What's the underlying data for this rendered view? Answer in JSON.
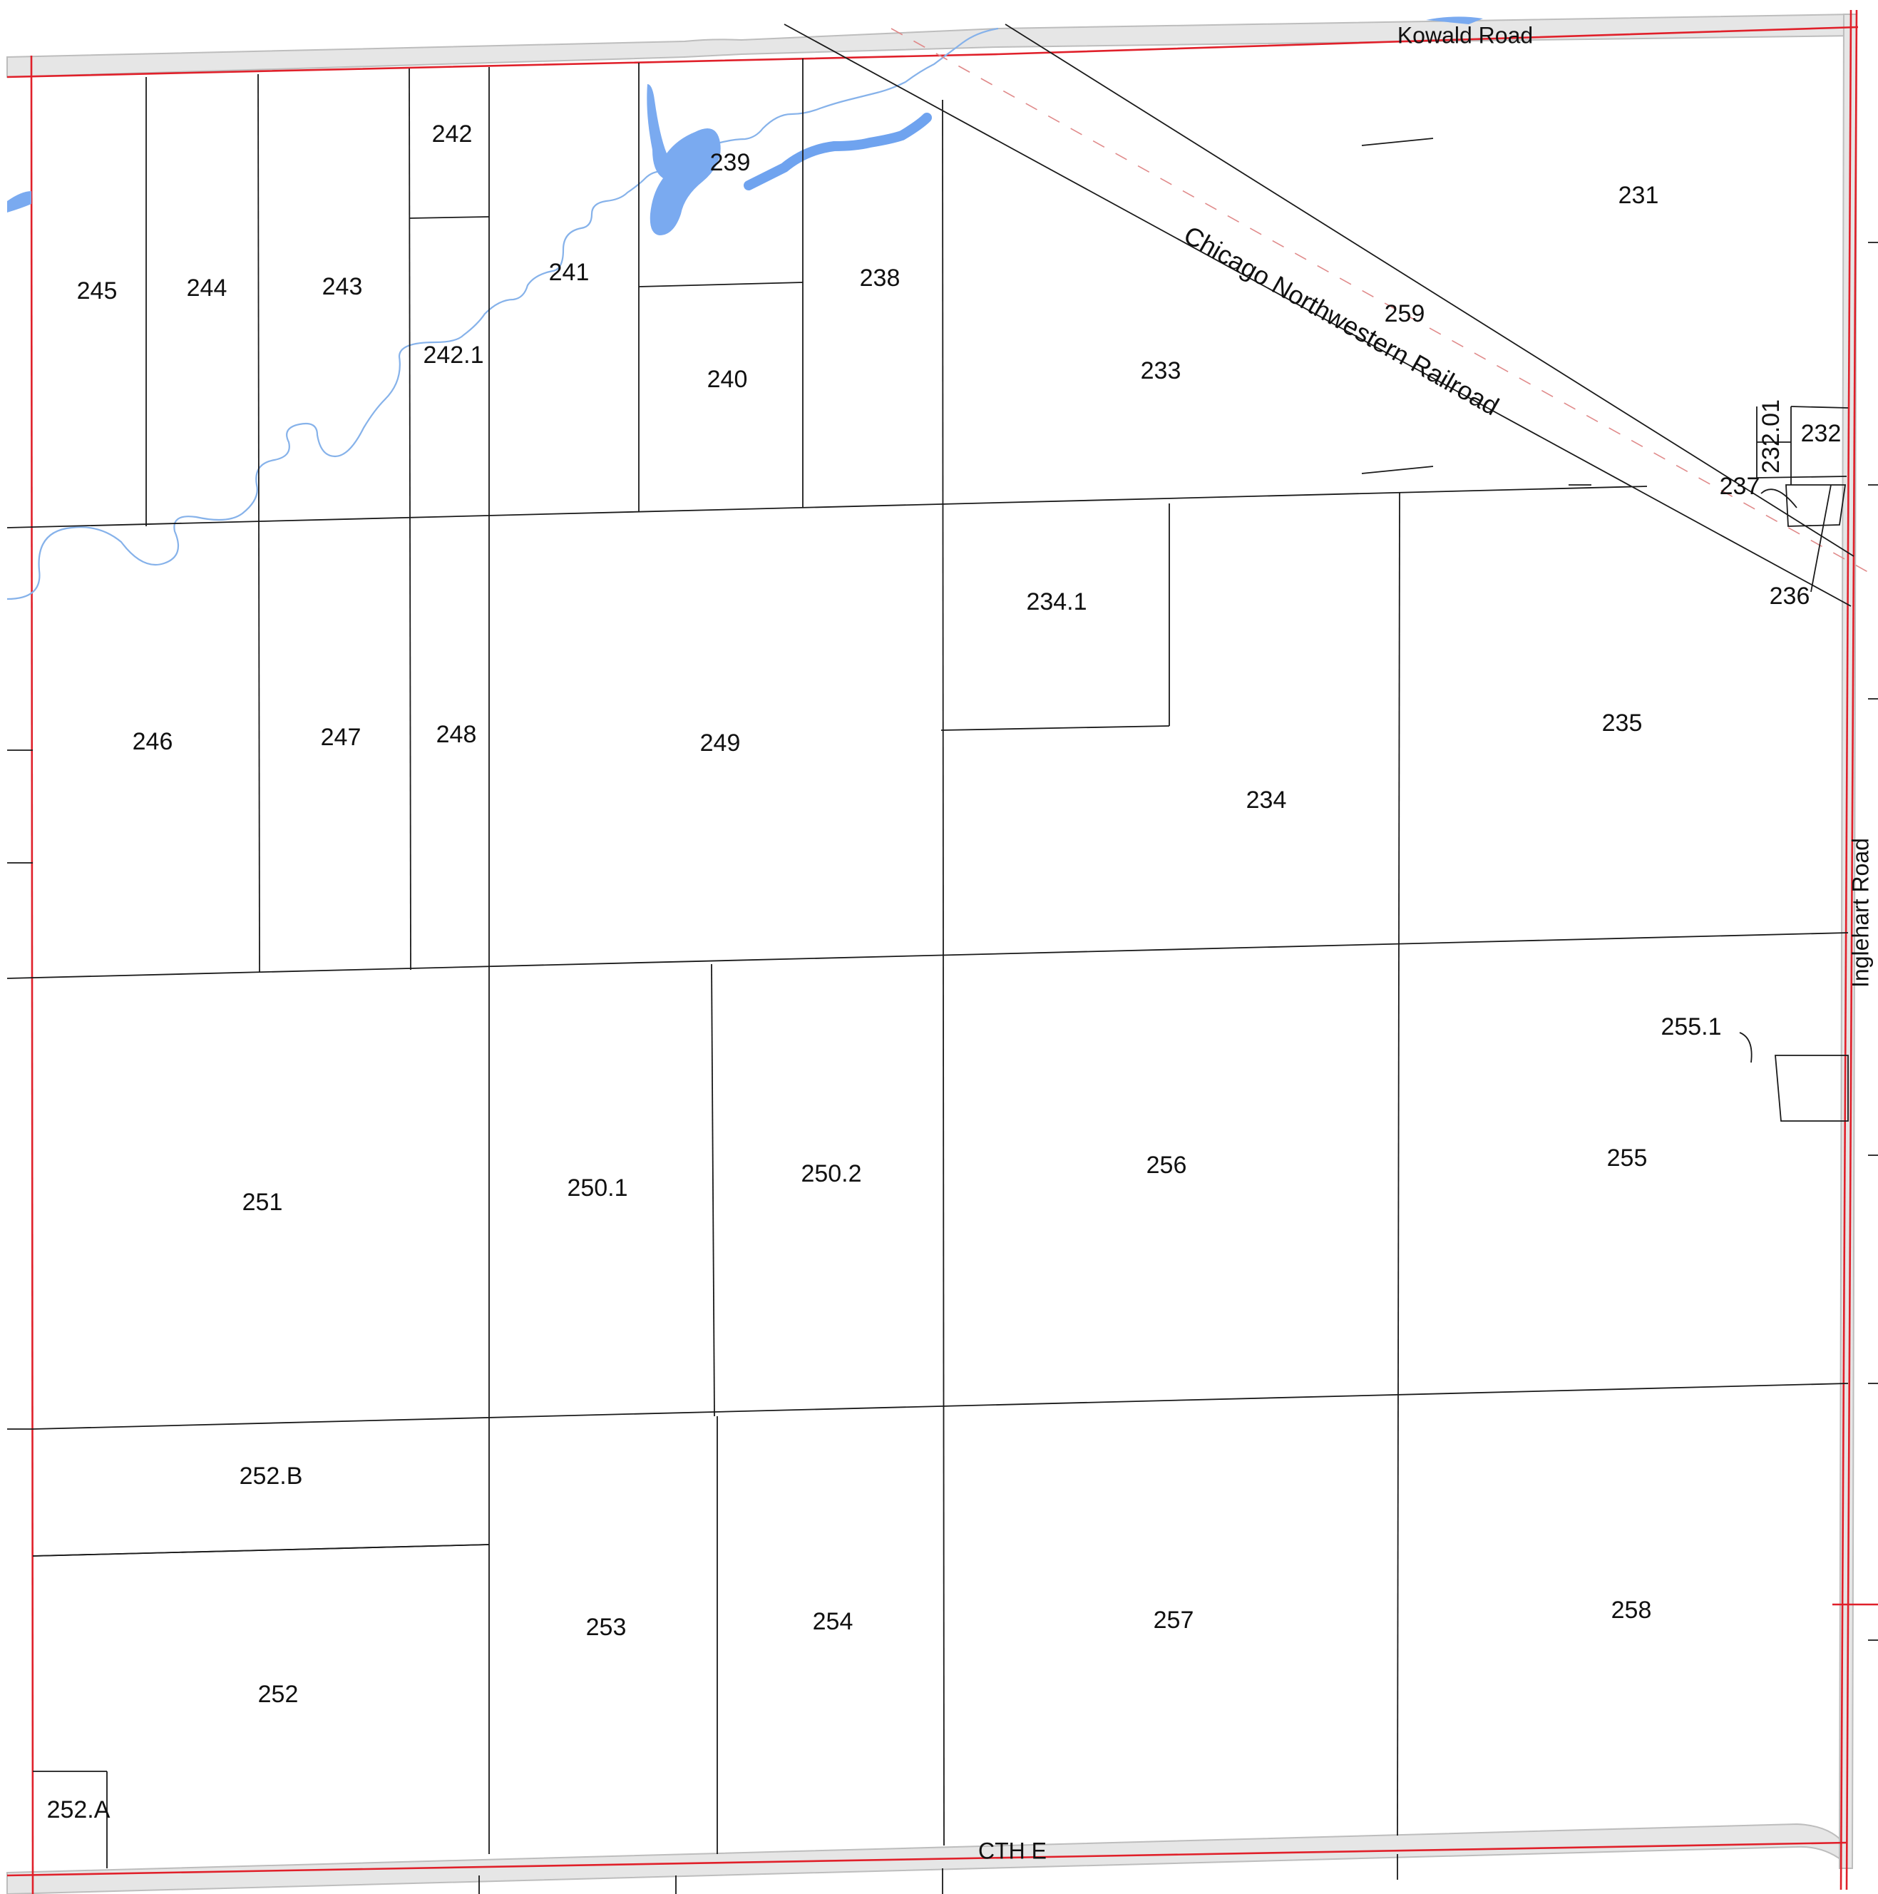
{
  "roads": {
    "north": "Kowald Road",
    "east": "Inglehart Road",
    "south": "CTH E",
    "railroad": "Chicago Northwestern Railroad"
  },
  "parcels": [
    {
      "id": "231",
      "label": "231"
    },
    {
      "id": "232",
      "label": "232"
    },
    {
      "id": "232.01",
      "label": "232.01"
    },
    {
      "id": "233",
      "label": "233"
    },
    {
      "id": "234",
      "label": "234"
    },
    {
      "id": "234.1",
      "label": "234.1"
    },
    {
      "id": "235",
      "label": "235"
    },
    {
      "id": "236",
      "label": "236"
    },
    {
      "id": "237",
      "label": "237"
    },
    {
      "id": "238",
      "label": "238"
    },
    {
      "id": "239",
      "label": "239"
    },
    {
      "id": "240",
      "label": "240"
    },
    {
      "id": "241",
      "label": "241"
    },
    {
      "id": "242",
      "label": "242"
    },
    {
      "id": "242.1",
      "label": "242.1"
    },
    {
      "id": "243",
      "label": "243"
    },
    {
      "id": "244",
      "label": "244"
    },
    {
      "id": "245",
      "label": "245"
    },
    {
      "id": "246",
      "label": "246"
    },
    {
      "id": "247",
      "label": "247"
    },
    {
      "id": "248",
      "label": "248"
    },
    {
      "id": "249",
      "label": "249"
    },
    {
      "id": "250.1",
      "label": "250.1"
    },
    {
      "id": "250.2",
      "label": "250.2"
    },
    {
      "id": "251",
      "label": "251"
    },
    {
      "id": "252",
      "label": "252"
    },
    {
      "id": "252.A",
      "label": "252.A"
    },
    {
      "id": "252.B",
      "label": "252.B"
    },
    {
      "id": "253",
      "label": "253"
    },
    {
      "id": "254",
      "label": "254"
    },
    {
      "id": "255",
      "label": "255"
    },
    {
      "id": "255.1",
      "label": "255.1"
    },
    {
      "id": "256",
      "label": "256"
    },
    {
      "id": "257",
      "label": "257"
    },
    {
      "id": "258",
      "label": "258"
    },
    {
      "id": "259",
      "label": "259"
    }
  ],
  "colors": {
    "section_line": "#e0202a",
    "water": "#7aaaf0",
    "parcel_line": "#1a1a1a",
    "road_fill": "#e6e6e6"
  }
}
